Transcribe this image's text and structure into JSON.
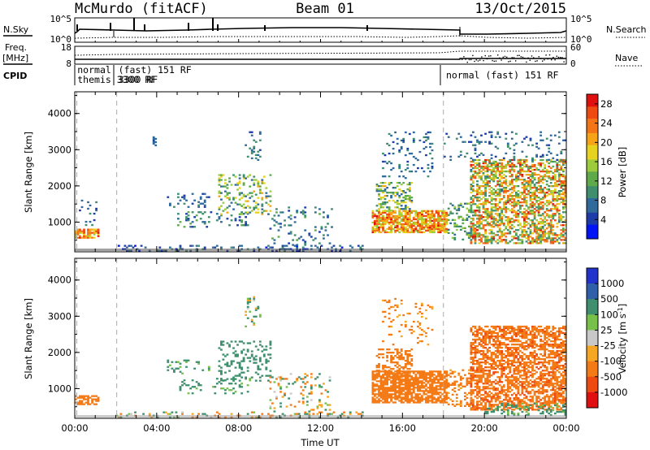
{
  "header": {
    "station": "McMurdo (fitACF)",
    "beam": "Beam 01",
    "date": "13/Oct/2015"
  },
  "panel_labels": {
    "nsky": "N.Sky",
    "nsearch": "N.Search",
    "freq_top": "Freq.",
    "freq_unit": "[MHz]",
    "nave": "Nave",
    "cpid": "CPID"
  },
  "noise_ticks": {
    "left_top": "10^5",
    "left_bottom": "10^0",
    "right_top": "10^5",
    "right_bottom": "10^0"
  },
  "freq_ticks": {
    "left_top": "18",
    "left_bottom": "8",
    "right_top": "60",
    "right_bottom": "0"
  },
  "cpid_texts": [
    {
      "text": "normal",
      "row": 1,
      "hour": 0.05
    },
    {
      "text": "(fast) 151 RF",
      "row": 1,
      "hour": 2.05
    },
    {
      "text": "themis 3300 RF",
      "row": 2,
      "hour": 0.05
    },
    {
      "text": "3300 RF",
      "row": 2,
      "hour": 2.05
    },
    {
      "text": "normal (fast) 151 RF",
      "row": 1.55,
      "hour": 18.05
    }
  ],
  "chart_data": [
    {
      "type": "heatmap",
      "title": "Power",
      "xlabel": "",
      "ylabel": "Slant Range [km]",
      "xlim": [
        0,
        24
      ],
      "ylim": [
        180,
        4600
      ],
      "yticks": [
        "1000",
        "2000",
        "3000",
        "4000"
      ],
      "colorbar_label": "Power [dB]",
      "colorbar_ticks": [
        "4",
        "8",
        "12",
        "16",
        "20",
        "24",
        "28"
      ],
      "colorbar_range": [
        0,
        30
      ],
      "colorscale": [
        "#0014f5",
        "#1e3ca8",
        "#2f6a9b",
        "#3f8f6e",
        "#5faa4a",
        "#9ccc3c",
        "#e6d21f",
        "#f6a417",
        "#f47516",
        "#ee4a12",
        "#e01010"
      ],
      "features": [
        {
          "h0": 0.0,
          "h1": 1.1,
          "r0": 550,
          "r1": 800,
          "dens": 0.7,
          "v0": 16,
          "v1": 28
        },
        {
          "h0": 0.2,
          "h1": 1.0,
          "r0": 900,
          "r1": 1600,
          "dens": 0.12,
          "v0": 4,
          "v1": 10
        },
        {
          "h0": 2.0,
          "h1": 14.0,
          "r0": 190,
          "r1": 360,
          "dens": 0.22,
          "v0": 2,
          "v1": 10
        },
        {
          "h0": 3.8,
          "h1": 4.0,
          "r0": 3100,
          "r1": 3350,
          "dens": 0.6,
          "v0": 4,
          "v1": 8
        },
        {
          "h0": 4.5,
          "h1": 6.5,
          "r0": 1400,
          "r1": 1800,
          "dens": 0.18,
          "v0": 4,
          "v1": 10
        },
        {
          "h0": 5.0,
          "h1": 8.5,
          "r0": 850,
          "r1": 1300,
          "dens": 0.16,
          "v0": 4,
          "v1": 12
        },
        {
          "h0": 7.0,
          "h1": 9.5,
          "r0": 1200,
          "r1": 2300,
          "dens": 0.22,
          "v0": 6,
          "v1": 20
        },
        {
          "h0": 8.3,
          "h1": 9.0,
          "r0": 2700,
          "r1": 3550,
          "dens": 0.2,
          "v0": 4,
          "v1": 10
        },
        {
          "h0": 9.5,
          "h1": 12.5,
          "r0": 350,
          "r1": 1400,
          "dens": 0.12,
          "v0": 4,
          "v1": 12
        },
        {
          "h0": 14.5,
          "h1": 18.2,
          "r0": 700,
          "r1": 1300,
          "dens": 0.75,
          "v0": 14,
          "v1": 28
        },
        {
          "h0": 14.7,
          "h1": 16.5,
          "r0": 1300,
          "r1": 2100,
          "dens": 0.4,
          "v0": 6,
          "v1": 20
        },
        {
          "h0": 15.0,
          "h1": 17.5,
          "r0": 2200,
          "r1": 3500,
          "dens": 0.1,
          "v0": 4,
          "v1": 10
        },
        {
          "h0": 18.2,
          "h1": 19.4,
          "r0": 500,
          "r1": 1500,
          "dens": 0.3,
          "v0": 6,
          "v1": 16
        },
        {
          "h0": 19.3,
          "h1": 24.0,
          "r0": 400,
          "r1": 2700,
          "dens": 0.55,
          "v0": 8,
          "v1": 28
        },
        {
          "h0": 18.0,
          "h1": 24.0,
          "r0": 2700,
          "r1": 3500,
          "dens": 0.12,
          "v0": 4,
          "v1": 10
        }
      ]
    },
    {
      "type": "heatmap",
      "title": "Velocity",
      "xlabel": "Time UT",
      "ylabel": "Slant Range [km]",
      "xlim": [
        0,
        24
      ],
      "ylim": [
        180,
        4600
      ],
      "xticks": [
        "00:00",
        "04:00",
        "08:00",
        "12:00",
        "16:00",
        "20:00",
        "00:00"
      ],
      "yticks": [
        "1000",
        "2000",
        "3000",
        "4000"
      ],
      "colorbar_label": "Velocity [m s^-1]",
      "colorbar_ticks": [
        "1000",
        "500",
        "100",
        "25",
        "-25",
        "-100",
        "-500",
        "-1000"
      ],
      "colorbar_range": [
        -1000,
        1000
      ],
      "colorscale": [
        "#2233cc",
        "#2e5fa8",
        "#3f8f6e",
        "#77c04a",
        "#c8c8c8",
        "#f5a623",
        "#f47a16",
        "#ee4a12",
        "#e01010"
      ],
      "features": [
        {
          "h0": 0.0,
          "h1": 1.1,
          "r0": 550,
          "r1": 800,
          "dens": 0.7,
          "v0": -500,
          "v1": -100
        },
        {
          "h0": 2.0,
          "h1": 14.0,
          "r0": 190,
          "r1": 360,
          "dens": 0.18,
          "v0": -300,
          "v1": 300
        },
        {
          "h0": 4.5,
          "h1": 6.5,
          "r0": 1400,
          "r1": 1800,
          "dens": 0.18,
          "v0": 25,
          "v1": 400
        },
        {
          "h0": 5.0,
          "h1": 8.5,
          "r0": 850,
          "r1": 1300,
          "dens": 0.16,
          "v0": 25,
          "v1": 400
        },
        {
          "h0": 7.0,
          "h1": 9.5,
          "r0": 1200,
          "r1": 2300,
          "dens": 0.22,
          "v0": 100,
          "v1": 500
        },
        {
          "h0": 8.3,
          "h1": 9.0,
          "r0": 2700,
          "r1": 3550,
          "dens": 0.2,
          "v0": -100,
          "v1": 200
        },
        {
          "h0": 9.5,
          "h1": 12.5,
          "r0": 350,
          "r1": 1400,
          "dens": 0.12,
          "v0": -300,
          "v1": 300
        },
        {
          "h0": 14.5,
          "h1": 18.2,
          "r0": 600,
          "r1": 1500,
          "dens": 0.75,
          "v0": -500,
          "v1": -100
        },
        {
          "h0": 14.7,
          "h1": 16.5,
          "r0": 1300,
          "r1": 2100,
          "dens": 0.4,
          "v0": -400,
          "v1": -100
        },
        {
          "h0": 15.0,
          "h1": 17.5,
          "r0": 2200,
          "r1": 3500,
          "dens": 0.1,
          "v0": -300,
          "v1": -25
        },
        {
          "h0": 18.2,
          "h1": 19.4,
          "r0": 500,
          "r1": 1500,
          "dens": 0.3,
          "v0": -500,
          "v1": -50
        },
        {
          "h0": 19.3,
          "h1": 24.0,
          "r0": 400,
          "r1": 2700,
          "dens": 0.6,
          "v0": -600,
          "v1": -100
        },
        {
          "h0": 20.0,
          "h1": 24.0,
          "r0": 250,
          "r1": 600,
          "dens": 0.25,
          "v0": 25,
          "v1": 300
        }
      ]
    }
  ]
}
